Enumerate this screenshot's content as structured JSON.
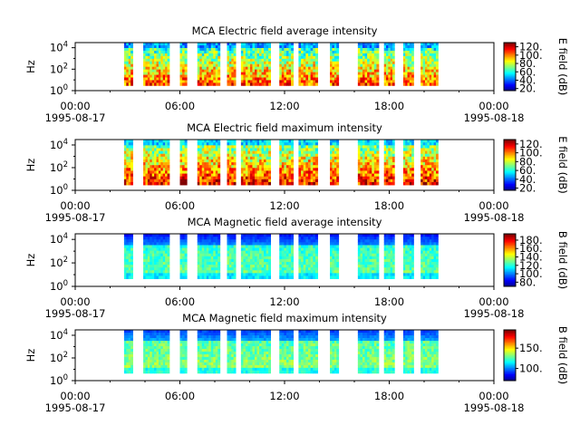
{
  "chart_data": [
    {
      "type": "heatmap",
      "title": "MCA  Electric field average intensity",
      "ylabel": "Hz",
      "yscale": "log",
      "ylim": [
        1,
        30000
      ],
      "y_ticks": [
        {
          "base": "10",
          "exp": "0",
          "value": 1
        },
        {
          "base": "10",
          "exp": "2",
          "value": 100
        },
        {
          "base": "10",
          "exp": "4",
          "value": 10000
        }
      ],
      "x_ticks": [
        {
          "time": "00:00",
          "date": "1995-08-17"
        },
        {
          "time": "06:00",
          "date": ""
        },
        {
          "time": "12:00",
          "date": ""
        },
        {
          "time": "18:00",
          "date": ""
        },
        {
          "time": "00:00",
          "date": "1995-08-18"
        }
      ],
      "xlim_hours": [
        0,
        24
      ],
      "colorbar": {
        "label": "E field (dB)",
        "range": [
          15,
          130
        ],
        "ticks": [
          "120.",
          "100.",
          "80.",
          "60.",
          "40.",
          "20."
        ],
        "tick_values": [
          120,
          100,
          80,
          60,
          40,
          20
        ],
        "colormap": "jet"
      },
      "data_segments_hours": [
        [
          2.8,
          3.3
        ],
        [
          3.9,
          5.4
        ],
        [
          6.0,
          6.4
        ],
        [
          7.0,
          8.3
        ],
        [
          8.7,
          9.2
        ],
        [
          9.5,
          11.2
        ],
        [
          11.7,
          12.5
        ],
        [
          12.8,
          13.9
        ],
        [
          14.6,
          15.1
        ],
        [
          16.2,
          17.4
        ],
        [
          17.7,
          18.3
        ],
        [
          18.8,
          19.4
        ],
        [
          19.8,
          20.8
        ]
      ]
    },
    {
      "type": "heatmap",
      "title": "MCA  Electric field maximum intensity",
      "ylabel": "Hz",
      "yscale": "log",
      "ylim": [
        1,
        30000
      ],
      "y_ticks": [
        {
          "base": "10",
          "exp": "0",
          "value": 1
        },
        {
          "base": "10",
          "exp": "2",
          "value": 100
        },
        {
          "base": "10",
          "exp": "4",
          "value": 10000
        }
      ],
      "x_ticks": [
        {
          "time": "00:00",
          "date": "1995-08-17"
        },
        {
          "time": "06:00",
          "date": ""
        },
        {
          "time": "12:00",
          "date": ""
        },
        {
          "time": "18:00",
          "date": ""
        },
        {
          "time": "00:00",
          "date": "1995-08-18"
        }
      ],
      "xlim_hours": [
        0,
        24
      ],
      "colorbar": {
        "label": "E field (dB)",
        "range": [
          15,
          130
        ],
        "ticks": [
          "120.",
          "100.",
          "80.",
          "60.",
          "40.",
          "20."
        ],
        "tick_values": [
          120,
          100,
          80,
          60,
          40,
          20
        ],
        "colormap": "jet"
      },
      "data_segments_hours": [
        [
          2.8,
          3.3
        ],
        [
          3.9,
          5.4
        ],
        [
          6.0,
          6.4
        ],
        [
          7.0,
          8.3
        ],
        [
          8.7,
          9.2
        ],
        [
          9.5,
          11.2
        ],
        [
          11.7,
          12.5
        ],
        [
          12.8,
          13.9
        ],
        [
          14.6,
          15.1
        ],
        [
          16.2,
          17.4
        ],
        [
          17.7,
          18.3
        ],
        [
          18.8,
          19.4
        ],
        [
          19.8,
          20.8
        ]
      ]
    },
    {
      "type": "heatmap",
      "title": "MCA  Magnetic field average intensity",
      "ylabel": "Hz",
      "yscale": "log",
      "ylim": [
        1,
        30000
      ],
      "y_ticks": [
        {
          "base": "10",
          "exp": "0",
          "value": 1
        },
        {
          "base": "10",
          "exp": "2",
          "value": 100
        },
        {
          "base": "10",
          "exp": "4",
          "value": 10000
        }
      ],
      "x_ticks": [
        {
          "time": "00:00",
          "date": "1995-08-17"
        },
        {
          "time": "06:00",
          "date": ""
        },
        {
          "time": "12:00",
          "date": ""
        },
        {
          "time": "18:00",
          "date": ""
        },
        {
          "time": "00:00",
          "date": "1995-08-18"
        }
      ],
      "xlim_hours": [
        0,
        24
      ],
      "colorbar": {
        "label": "B field (dB)",
        "range": [
          70,
          195
        ],
        "ticks": [
          "180.",
          "160.",
          "140.",
          "120.",
          "100.",
          "80."
        ],
        "tick_values": [
          180,
          160,
          140,
          120,
          100,
          80
        ],
        "colormap": "jet"
      },
      "data_segments_hours": [
        [
          2.8,
          3.3
        ],
        [
          3.9,
          5.4
        ],
        [
          6.0,
          6.4
        ],
        [
          7.0,
          8.3
        ],
        [
          8.7,
          9.2
        ],
        [
          9.5,
          11.2
        ],
        [
          11.7,
          12.5
        ],
        [
          12.8,
          13.9
        ],
        [
          14.6,
          15.1
        ],
        [
          16.2,
          17.4
        ],
        [
          17.7,
          18.3
        ],
        [
          18.8,
          19.4
        ],
        [
          19.8,
          20.8
        ]
      ]
    },
    {
      "type": "heatmap",
      "title": "MCA  Magnetic field maximum intensity",
      "ylabel": "Hz",
      "yscale": "log",
      "ylim": [
        1,
        30000
      ],
      "y_ticks": [
        {
          "base": "10",
          "exp": "0",
          "value": 1
        },
        {
          "base": "10",
          "exp": "2",
          "value": 100
        },
        {
          "base": "10",
          "exp": "4",
          "value": 10000
        }
      ],
      "x_ticks": [
        {
          "time": "00:00",
          "date": "1995-08-17"
        },
        {
          "time": "06:00",
          "date": ""
        },
        {
          "time": "12:00",
          "date": ""
        },
        {
          "time": "18:00",
          "date": ""
        },
        {
          "time": "00:00",
          "date": "1995-08-18"
        }
      ],
      "xlim_hours": [
        0,
        24
      ],
      "colorbar": {
        "label": "B field (dB)",
        "range": [
          70,
          195
        ],
        "ticks": [
          "150.",
          "100."
        ],
        "tick_values": [
          150,
          100
        ],
        "colormap": "jet"
      },
      "data_segments_hours": [
        [
          2.8,
          3.3
        ],
        [
          3.9,
          5.4
        ],
        [
          6.0,
          6.4
        ],
        [
          7.0,
          8.3
        ],
        [
          8.7,
          9.2
        ],
        [
          9.5,
          11.2
        ],
        [
          11.7,
          12.5
        ],
        [
          12.8,
          13.9
        ],
        [
          14.6,
          15.1
        ],
        [
          16.2,
          17.4
        ],
        [
          17.7,
          18.3
        ],
        [
          18.8,
          19.4
        ],
        [
          19.8,
          20.8
        ]
      ]
    }
  ]
}
